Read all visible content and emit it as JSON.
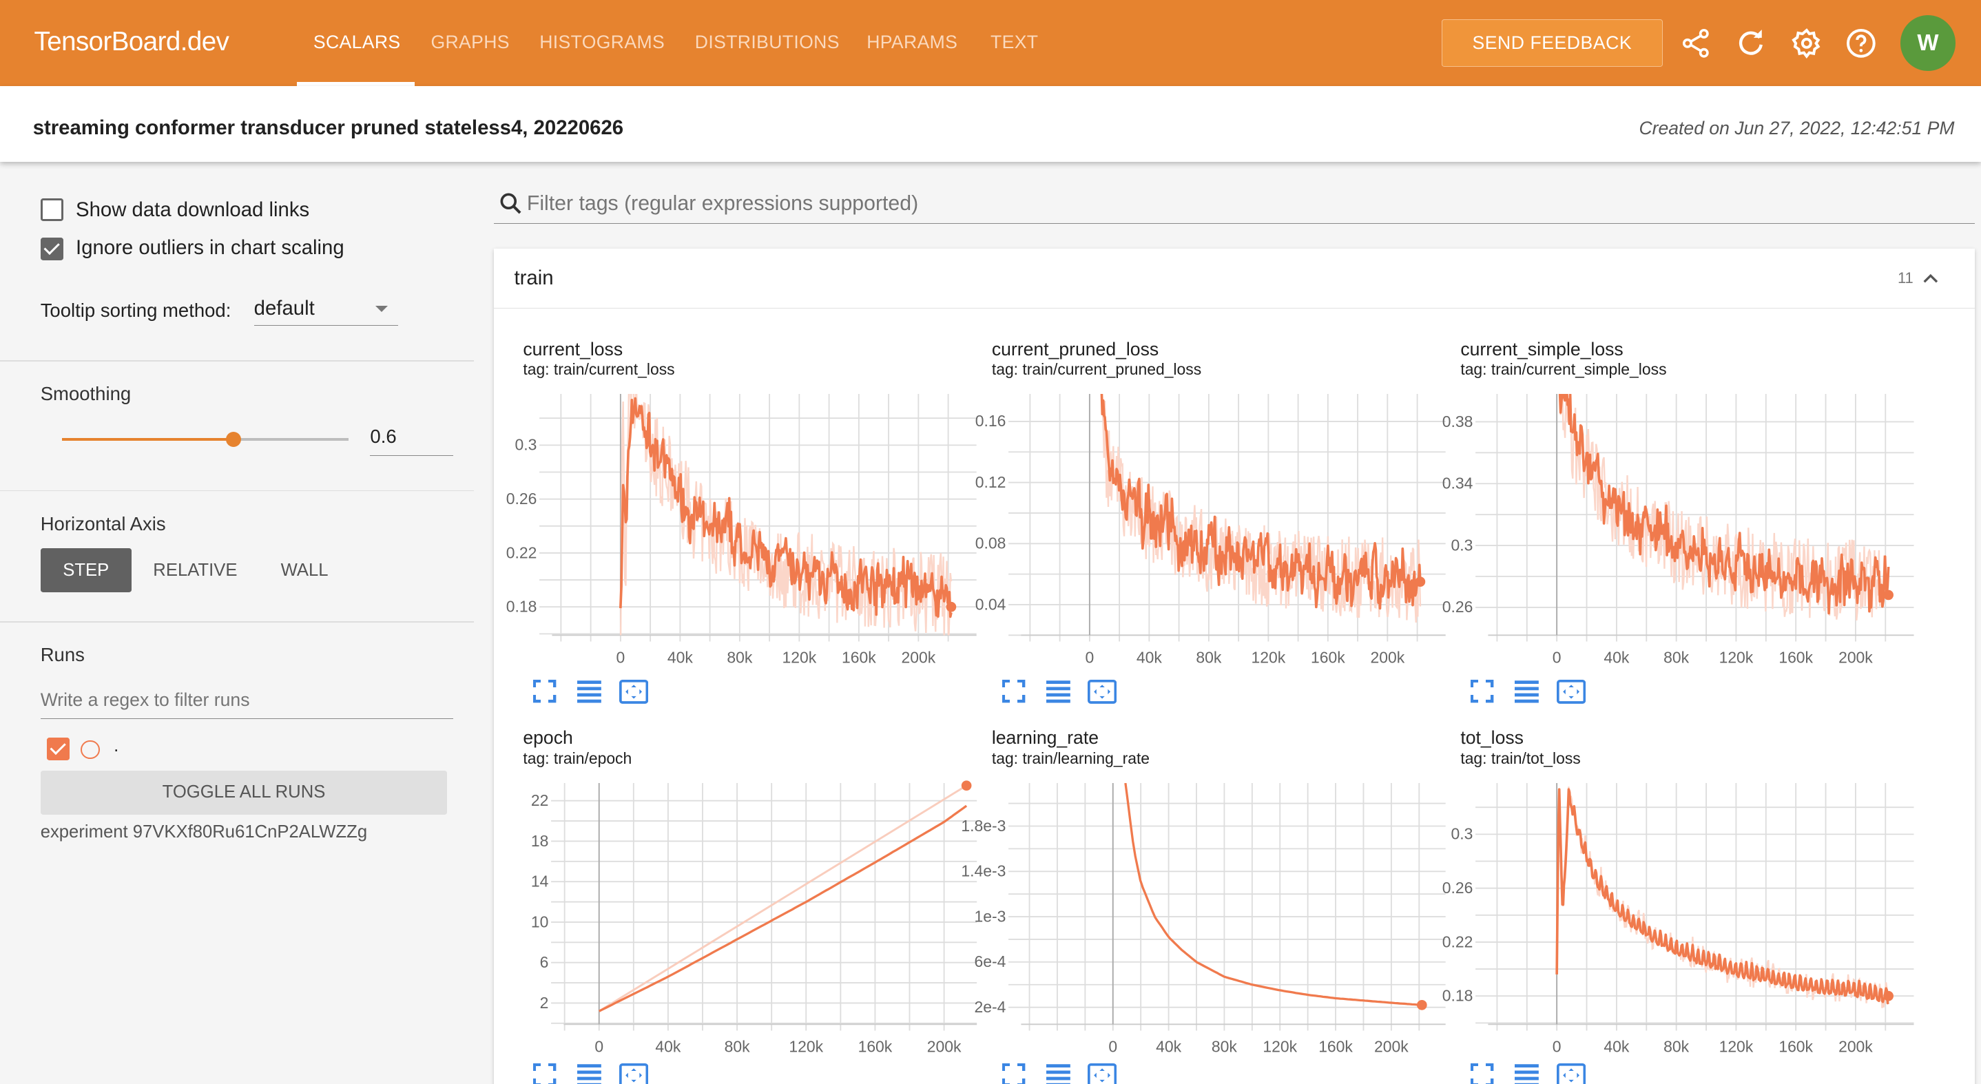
{
  "header": {
    "brand": "TensorBoard.dev",
    "tabs": [
      "SCALARS",
      "GRAPHS",
      "HISTOGRAMS",
      "DISTRIBUTIONS",
      "HPARAMS",
      "TEXT"
    ],
    "active_tab": "SCALARS",
    "feedback_label": "SEND FEEDBACK",
    "avatar_letter": "W",
    "accent": "#e6832f"
  },
  "experiment": {
    "title": "streaming conformer transducer pruned stateless4, 20220626",
    "created": "Created on Jun 27, 2022, 12:42:51 PM"
  },
  "sidebar": {
    "show_download_links": {
      "label": "Show data download links",
      "checked": false
    },
    "ignore_outliers": {
      "label": "Ignore outliers in chart scaling",
      "checked": true
    },
    "tooltip_label": "Tooltip sorting method:",
    "tooltip_value": "default",
    "smoothing_label": "Smoothing",
    "smoothing_value": "0.6",
    "smoothing_fraction": 0.6,
    "horizontal_axis_label": "Horizontal Axis",
    "axis_options": [
      "STEP",
      "RELATIVE",
      "WALL"
    ],
    "axis_selected": "STEP",
    "runs_label": "Runs",
    "runs_filter_placeholder": "Write a regex to filter runs",
    "run": {
      "name": ".",
      "checked": true,
      "color": "#f07a4d"
    },
    "toggle_all_label": "TOGGLE ALL RUNS",
    "experiment_id": "experiment 97VKXf80Ru61CnP2ALWZZg"
  },
  "main": {
    "filter_placeholder": "Filter tags (regular expressions supported)",
    "group_name": "train",
    "group_count": "11"
  },
  "chart_data": [
    {
      "type": "line",
      "title": "current_loss",
      "tag": "tag: train/current_loss",
      "xlim": [
        -46000,
        239000
      ],
      "ylim": [
        0.159,
        0.338
      ],
      "xticks": [
        0,
        40000,
        80000,
        120000,
        160000,
        200000
      ],
      "xtick_labels": [
        "0",
        "40k",
        "80k",
        "120k",
        "160k",
        "200k"
      ],
      "yticks": [
        0.18,
        0.22,
        0.26,
        0.3
      ],
      "ytick_labels": [
        "0.18",
        "0.22",
        "0.26",
        "0.3"
      ],
      "noisy": true,
      "series": [
        {
          "x": [
            0,
            1500,
            3000,
            6000,
            10000,
            20000,
            30000,
            40000,
            50000,
            60000,
            70000,
            80000,
            100000,
            120000,
            140000,
            160000,
            180000,
            200000,
            215000,
            222000
          ],
          "y": [
            0.17,
            0.34,
            0.2,
            0.34,
            0.33,
            0.3,
            0.28,
            0.265,
            0.245,
            0.235,
            0.235,
            0.225,
            0.212,
            0.205,
            0.2,
            0.197,
            0.195,
            0.193,
            0.19,
            0.18
          ]
        }
      ]
    },
    {
      "type": "line",
      "title": "current_pruned_loss",
      "tag": "tag: train/current_pruned_loss",
      "xlim": [
        -46000,
        239000
      ],
      "ylim": [
        0.02,
        0.178
      ],
      "xticks": [
        0,
        40000,
        80000,
        120000,
        160000,
        200000
      ],
      "xtick_labels": [
        "0",
        "40k",
        "80k",
        "120k",
        "160k",
        "200k"
      ],
      "yticks": [
        0.04,
        0.08,
        0.12,
        0.16
      ],
      "ytick_labels": [
        "0.04",
        "0.08",
        "0.12",
        "0.16"
      ],
      "noisy": true,
      "series": [
        {
          "x": [
            8000,
            12000,
            20000,
            30000,
            40000,
            60000,
            80000,
            100000,
            120000,
            140000,
            160000,
            180000,
            200000,
            215000,
            222000
          ],
          "y": [
            0.178,
            0.13,
            0.115,
            0.105,
            0.095,
            0.085,
            0.075,
            0.068,
            0.065,
            0.062,
            0.06,
            0.058,
            0.057,
            0.056,
            0.055
          ]
        }
      ]
    },
    {
      "type": "line",
      "title": "current_simple_loss",
      "tag": "tag: train/current_simple_loss",
      "xlim": [
        -46000,
        239000
      ],
      "ylim": [
        0.242,
        0.398
      ],
      "xticks": [
        0,
        40000,
        80000,
        120000,
        160000,
        200000
      ],
      "xtick_labels": [
        "0",
        "40k",
        "80k",
        "120k",
        "160k",
        "200k"
      ],
      "yticks": [
        0.26,
        0.3,
        0.34,
        0.38
      ],
      "ytick_labels": [
        "0.26",
        "0.3",
        "0.34",
        "0.38"
      ],
      "noisy": true,
      "series": [
        {
          "x": [
            2000,
            10000,
            20000,
            30000,
            40000,
            60000,
            80000,
            100000,
            120000,
            140000,
            160000,
            180000,
            200000,
            215000,
            222000
          ],
          "y": [
            0.398,
            0.37,
            0.35,
            0.335,
            0.325,
            0.31,
            0.3,
            0.292,
            0.287,
            0.283,
            0.28,
            0.278,
            0.277,
            0.276,
            0.268
          ]
        }
      ]
    },
    {
      "type": "line",
      "title": "epoch",
      "tag": "tag: train/epoch",
      "xlim": [
        -20500,
        219000
      ],
      "ylim": [
        -0.1,
        23.75
      ],
      "xticks": [
        0,
        40000,
        80000,
        120000,
        160000,
        200000
      ],
      "xtick_labels": [
        "0",
        "40k",
        "80k",
        "120k",
        "160k",
        "200k"
      ],
      "yticks": [
        2,
        6,
        10,
        14,
        18,
        22
      ],
      "ytick_labels": [
        "2",
        "6",
        "10",
        "14",
        "18",
        "22"
      ],
      "noisy": false,
      "series": [
        {
          "x": [
            0,
            40000,
            80000,
            120000,
            160000,
            200000,
            213000
          ],
          "y": [
            1.2,
            4.6,
            8.3,
            12.0,
            15.9,
            19.9,
            21.5
          ]
        }
      ],
      "raw": [
        {
          "x": [
            0,
            213000
          ],
          "y": [
            1.2,
            23.5
          ]
        }
      ]
    },
    {
      "type": "line",
      "title": "learning_rate",
      "tag": "tag: train/learning_rate",
      "xlim": [
        -66000,
        239000
      ],
      "ylim": [
        5e-05,
        0.00218
      ],
      "xticks": [
        0,
        40000,
        80000,
        120000,
        160000,
        200000
      ],
      "xtick_labels": [
        "0",
        "40k",
        "80k",
        "120k",
        "160k",
        "200k"
      ],
      "yticks": [
        0.0002,
        0.0006,
        0.001,
        0.0014,
        0.0018
      ],
      "ytick_labels": [
        "2e-4",
        "6e-4",
        "1e-3",
        "1.4e-3",
        "1.8e-3"
      ],
      "noisy": false,
      "series": [
        {
          "x": [
            9000,
            15000,
            20000,
            30000,
            40000,
            50000,
            60000,
            80000,
            100000,
            120000,
            140000,
            160000,
            180000,
            200000,
            222000
          ],
          "y": [
            0.00218,
            0.0016,
            0.0013,
            0.001,
            0.00082,
            0.0007,
            0.0006,
            0.00047,
            0.0004,
            0.00035,
            0.00031,
            0.00028,
            0.00026,
            0.00024,
            0.00022
          ]
        }
      ]
    },
    {
      "type": "line",
      "title": "tot_loss",
      "tag": "tag: train/tot_loss",
      "xlim": [
        -46000,
        239000
      ],
      "ylim": [
        0.159,
        0.338
      ],
      "xticks": [
        0,
        40000,
        80000,
        120000,
        160000,
        200000
      ],
      "xtick_labels": [
        "0",
        "40k",
        "80k",
        "120k",
        "160k",
        "200k"
      ],
      "yticks": [
        0.18,
        0.22,
        0.26,
        0.3
      ],
      "ytick_labels": [
        "0.18",
        "0.22",
        "0.26",
        "0.3"
      ],
      "noisy": "periodic",
      "series": [
        {
          "x": [
            0,
            1500,
            4000,
            8000,
            15000,
            25000,
            40000,
            60000,
            80000,
            100000,
            120000,
            140000,
            160000,
            180000,
            200000,
            222000
          ],
          "y": [
            0.2,
            0.338,
            0.24,
            0.33,
            0.3,
            0.27,
            0.245,
            0.228,
            0.215,
            0.207,
            0.2,
            0.195,
            0.19,
            0.187,
            0.185,
            0.18
          ]
        }
      ]
    }
  ]
}
